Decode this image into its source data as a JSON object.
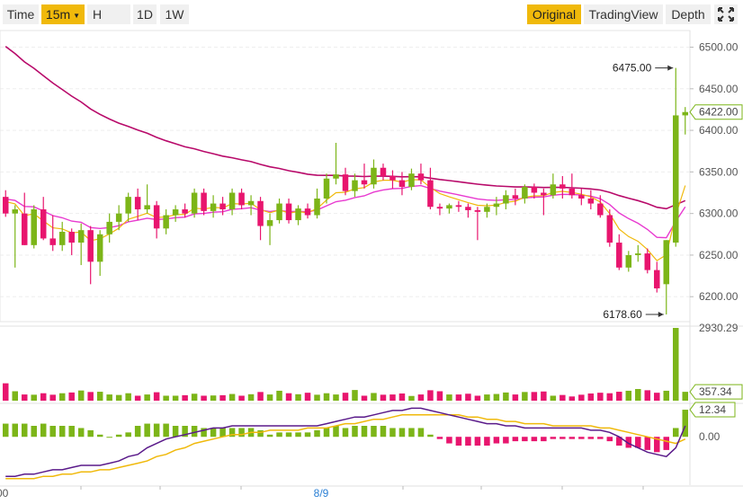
{
  "toolbar": {
    "time_label": "Time",
    "interval_label": "15m",
    "h_label": "H",
    "d_label": "1D",
    "w_label": "1W",
    "original_label": "Original",
    "tradingview_label": "TradingView",
    "depth_label": "Depth"
  },
  "chart_data": {
    "type": "candlestick",
    "price_axis": {
      "ylim": [
        6170,
        6520
      ],
      "ticks": [
        6200,
        6250,
        6300,
        6350,
        6400,
        6450,
        6500
      ],
      "tick_labels": [
        "6200.00",
        "6250.00",
        "6300.00",
        "6350.00",
        "6400.00",
        "6450.00",
        "6500.00"
      ]
    },
    "x_labels": [
      "00",
      "8/9"
    ],
    "annotations": {
      "high_label": "6475.00",
      "low_label": "6178.60",
      "last_price_label": "6422.00"
    },
    "colors": {
      "up": "#7cb518",
      "down": "#e8156e",
      "ma_long": "#b80a6a",
      "ma_mid": "#e83ad0",
      "ma_short": "#f0b90b",
      "macd_line": "#5a1a8a",
      "signal_line": "#f0b90b"
    },
    "candles": [
      [
        6320,
        6328,
        6296,
        6300
      ],
      [
        6300,
        6310,
        6235,
        6305
      ],
      [
        6300,
        6325,
        6262,
        6262
      ],
      [
        6262,
        6310,
        6258,
        6305
      ],
      [
        6305,
        6320,
        6268,
        6270
      ],
      [
        6270,
        6298,
        6255,
        6262
      ],
      [
        6262,
        6290,
        6255,
        6278
      ],
      [
        6278,
        6282,
        6250,
        6265
      ],
      [
        6265,
        6288,
        6238,
        6280
      ],
      [
        6280,
        6285,
        6215,
        6242
      ],
      [
        6242,
        6280,
        6225,
        6275
      ],
      [
        6275,
        6300,
        6265,
        6290
      ],
      [
        6290,
        6310,
        6280,
        6300
      ],
      [
        6300,
        6325,
        6290,
        6320
      ],
      [
        6320,
        6330,
        6292,
        6305
      ],
      [
        6305,
        6335,
        6300,
        6310
      ],
      [
        6310,
        6315,
        6270,
        6282
      ],
      [
        6282,
        6305,
        6275,
        6298
      ],
      [
        6298,
        6310,
        6290,
        6305
      ],
      [
        6305,
        6312,
        6295,
        6300
      ],
      [
        6300,
        6330,
        6295,
        6325
      ],
      [
        6325,
        6330,
        6298,
        6303
      ],
      [
        6303,
        6322,
        6295,
        6312
      ],
      [
        6312,
        6320,
        6298,
        6305
      ],
      [
        6305,
        6330,
        6298,
        6325
      ],
      [
        6325,
        6330,
        6305,
        6310
      ],
      [
        6310,
        6322,
        6298,
        6315
      ],
      [
        6315,
        6320,
        6268,
        6285
      ],
      [
        6285,
        6300,
        6262,
        6292
      ],
      [
        6292,
        6318,
        6288,
        6312
      ],
      [
        6312,
        6318,
        6288,
        6292
      ],
      [
        6292,
        6310,
        6286,
        6306
      ],
      [
        6306,
        6312,
        6294,
        6298
      ],
      [
        6298,
        6330,
        6294,
        6318
      ],
      [
        6318,
        6348,
        6312,
        6342
      ],
      [
        6342,
        6385,
        6335,
        6347
      ],
      [
        6347,
        6355,
        6322,
        6327
      ],
      [
        6327,
        6348,
        6320,
        6340
      ],
      [
        6340,
        6360,
        6330,
        6335
      ],
      [
        6335,
        6365,
        6330,
        6355
      ],
      [
        6355,
        6360,
        6340,
        6345
      ],
      [
        6345,
        6352,
        6330,
        6340
      ],
      [
        6340,
        6350,
        6322,
        6332
      ],
      [
        6332,
        6354,
        6328,
        6348
      ],
      [
        6348,
        6360,
        6335,
        6340
      ],
      [
        6340,
        6355,
        6305,
        6308
      ],
      [
        6308,
        6312,
        6298,
        6306
      ],
      [
        6306,
        6312,
        6300,
        6310
      ],
      [
        6310,
        6315,
        6302,
        6308
      ],
      [
        6308,
        6312,
        6295,
        6304
      ],
      [
        6304,
        6308,
        6268,
        6302
      ],
      [
        6302,
        6312,
        6295,
        6308
      ],
      [
        6308,
        6320,
        6298,
        6312
      ],
      [
        6312,
        6328,
        6305,
        6322
      ],
      [
        6322,
        6330,
        6310,
        6318
      ],
      [
        6318,
        6335,
        6312,
        6332
      ],
      [
        6332,
        6336,
        6318,
        6325
      ],
      [
        6325,
        6330,
        6298,
        6322
      ],
      [
        6322,
        6348,
        6318,
        6335
      ],
      [
        6335,
        6345,
        6318,
        6330
      ],
      [
        6330,
        6348,
        6318,
        6322
      ],
      [
        6322,
        6330,
        6310,
        6318
      ],
      [
        6318,
        6328,
        6305,
        6312
      ],
      [
        6312,
        6322,
        6295,
        6298
      ],
      [
        6298,
        6305,
        6260,
        6265
      ],
      [
        6265,
        6275,
        6232,
        6235
      ],
      [
        6235,
        6255,
        6230,
        6250
      ],
      [
        6250,
        6262,
        6242,
        6252
      ],
      [
        6252,
        6258,
        6228,
        6232
      ],
      [
        6232,
        6242,
        6205,
        6210
      ],
      [
        6215,
        6268,
        6178.6,
        6268
      ],
      [
        6265,
        6475,
        6260,
        6418
      ],
      [
        6418,
        6428,
        6395,
        6422
      ]
    ],
    "volume_axis": {
      "tick_labels": [
        "2930.29",
        "357.34"
      ],
      "max": 2930.29,
      "last": 357.34
    },
    "volume": [
      700,
      380,
      250,
      240,
      300,
      240,
      300,
      330,
      410,
      350,
      360,
      250,
      230,
      300,
      200,
      250,
      340,
      200,
      200,
      220,
      280,
      200,
      210,
      220,
      270,
      200,
      260,
      350,
      250,
      400,
      300,
      260,
      320,
      240,
      300,
      250,
      320,
      430,
      200,
      310,
      240,
      250,
      290,
      190,
      250,
      420,
      380,
      250,
      250,
      280,
      200,
      250,
      270,
      330,
      250,
      350,
      350,
      370,
      200,
      230,
      170,
      240,
      290,
      320,
      300,
      360,
      400,
      470,
      420,
      320,
      400,
      2930.29,
      357.34
    ],
    "macd_axis": {
      "tick_labels": [
        "12.34",
        "0.00"
      ],
      "last": 12.34
    },
    "macd_hist": [
      6,
      6,
      6,
      5,
      6,
      5,
      5,
      5,
      4,
      3,
      1,
      0,
      1,
      2,
      5,
      6,
      6,
      6,
      5,
      5,
      5,
      4,
      4,
      4,
      4,
      4,
      4,
      3,
      1,
      2,
      2,
      2,
      2,
      3,
      4,
      5,
      4,
      5,
      5,
      5,
      5,
      4,
      4,
      4,
      4,
      1,
      -1,
      -3,
      -4,
      -4,
      -4,
      -4,
      -3,
      -3,
      -2,
      -2,
      -2,
      -2,
      -1,
      -1,
      -1,
      -1,
      -1,
      -1,
      -2,
      -4,
      -5,
      -5,
      -6,
      -7,
      -6,
      4,
      12.34
    ],
    "macd_line": [
      -18,
      -18,
      -17,
      -17,
      -16,
      -15,
      -15,
      -14,
      -13,
      -13,
      -13,
      -12,
      -11,
      -9,
      -8,
      -5,
      -3,
      -1,
      0,
      1,
      2,
      3,
      4,
      4,
      5,
      5,
      5,
      5,
      5,
      5,
      5,
      5,
      5,
      5,
      6,
      7,
      8,
      9,
      9,
      10,
      11,
      12,
      12,
      13,
      13,
      12,
      11,
      10,
      9,
      8,
      7,
      6,
      6,
      5,
      5,
      4,
      4,
      4,
      4,
      4,
      4,
      4,
      3,
      3,
      2,
      0,
      -3,
      -5,
      -7,
      -8,
      -9,
      -5,
      5
    ],
    "signal_line": [
      -19,
      -19,
      -19,
      -19,
      -18,
      -18,
      -17,
      -17,
      -16,
      -16,
      -15,
      -15,
      -14,
      -13,
      -12,
      -11,
      -9,
      -8,
      -6,
      -5,
      -3,
      -2,
      -1,
      0,
      1,
      1,
      2,
      2,
      3,
      3,
      3,
      3,
      4,
      4,
      4,
      5,
      6,
      6,
      7,
      8,
      8,
      9,
      10,
      10,
      10,
      10,
      10,
      10,
      10,
      9,
      9,
      8,
      8,
      7,
      7,
      6,
      6,
      6,
      5,
      5,
      5,
      5,
      5,
      4,
      4,
      3,
      2,
      1,
      0,
      -1,
      -2,
      -3,
      -1
    ]
  }
}
